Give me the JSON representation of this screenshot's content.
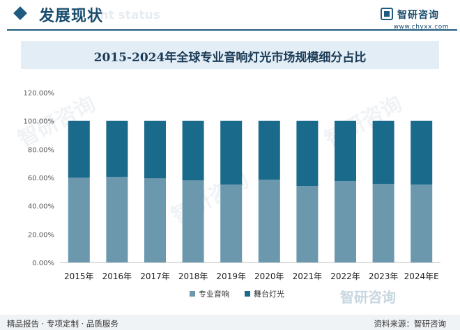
{
  "header": {
    "title": "发展现状",
    "subtitle": "ent status"
  },
  "brand": {
    "name": "智研咨询",
    "url": "www.chyxx.com"
  },
  "watermark": "智研咨询",
  "colors": {
    "series1": "#6b98ad",
    "series2": "#1a6a8c",
    "accent": "#1f5a80"
  },
  "chart_data": {
    "type": "bar",
    "stacked": true,
    "title": "2015-2024年全球专业音响灯光市场规模细分占比",
    "categories": [
      "2015年",
      "2016年",
      "2017年",
      "2018年",
      "2019年",
      "2020年",
      "2021年",
      "2022年",
      "2023年",
      "2024年E"
    ],
    "series": [
      {
        "name": "专业音响",
        "values": [
          60.0,
          60.5,
          59.5,
          58.0,
          55.0,
          58.5,
          54.0,
          57.5,
          55.5,
          55.0
        ]
      },
      {
        "name": "舞台灯光",
        "values": [
          40.0,
          39.5,
          40.5,
          42.0,
          45.0,
          41.5,
          46.0,
          42.5,
          44.5,
          45.0
        ]
      }
    ],
    "yticks": [
      "0.00%",
      "20.00%",
      "40.00%",
      "60.00%",
      "80.00%",
      "100.00%",
      "120.00%"
    ],
    "ylim": [
      0,
      120
    ],
    "grid": false,
    "legend_position": "bottom"
  },
  "footer": {
    "left": "精品报告 · 专项定制 · 品质服务",
    "right": "资料来源：智研咨询"
  }
}
